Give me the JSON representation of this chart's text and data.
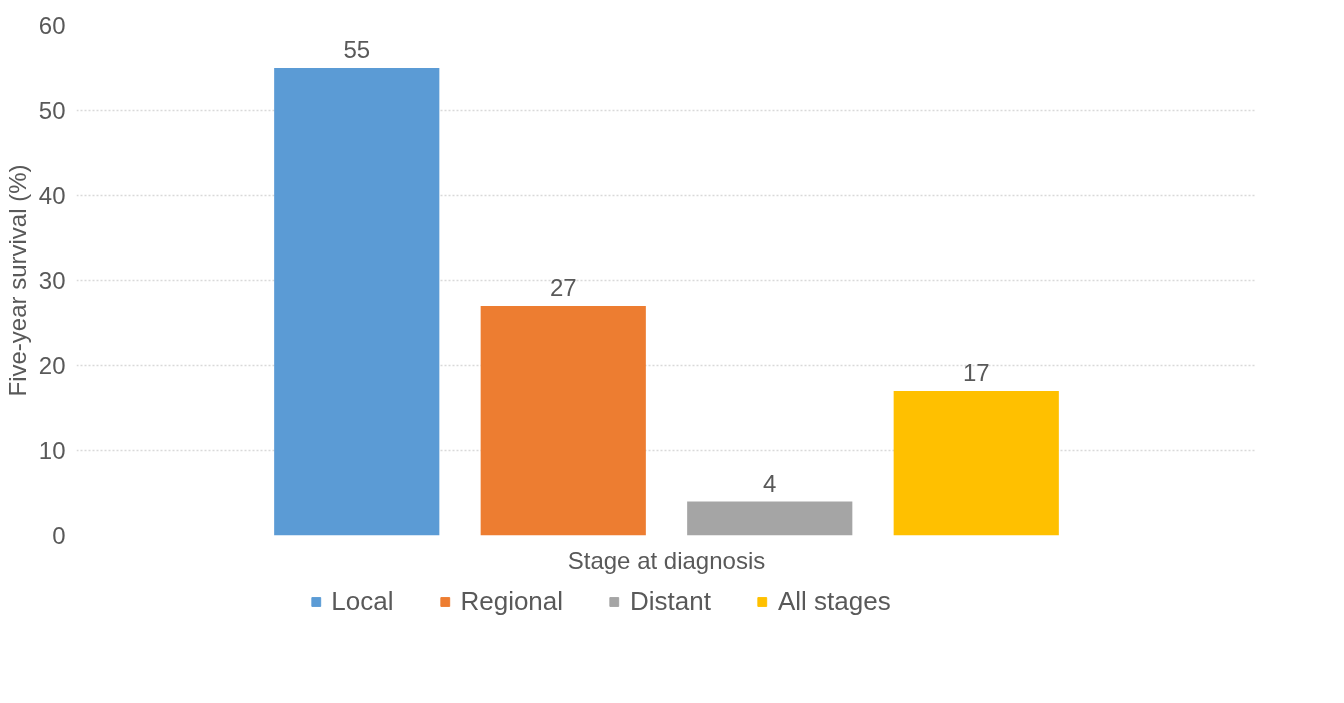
{
  "chart_data": {
    "type": "bar",
    "xlabel": "Stage at diagnosis",
    "ylabel": "Five-year survival (%)",
    "categories": [
      null
    ],
    "series": [
      {
        "name": "Local",
        "color": "#5b9bd5",
        "values": [
          55
        ]
      },
      {
        "name": "Regional",
        "color": "#ed7d31",
        "values": [
          27
        ]
      },
      {
        "name": "Distant",
        "color": "#a5a5a5",
        "values": [
          4
        ]
      },
      {
        "name": "All stages",
        "color": "#ffc000",
        "values": [
          17
        ]
      }
    ],
    "ylim": [
      0,
      60
    ],
    "yticks": [
      0,
      10,
      20,
      30,
      40,
      50,
      60
    ],
    "grid": "y",
    "data_labels": true,
    "legend": "bottom"
  }
}
